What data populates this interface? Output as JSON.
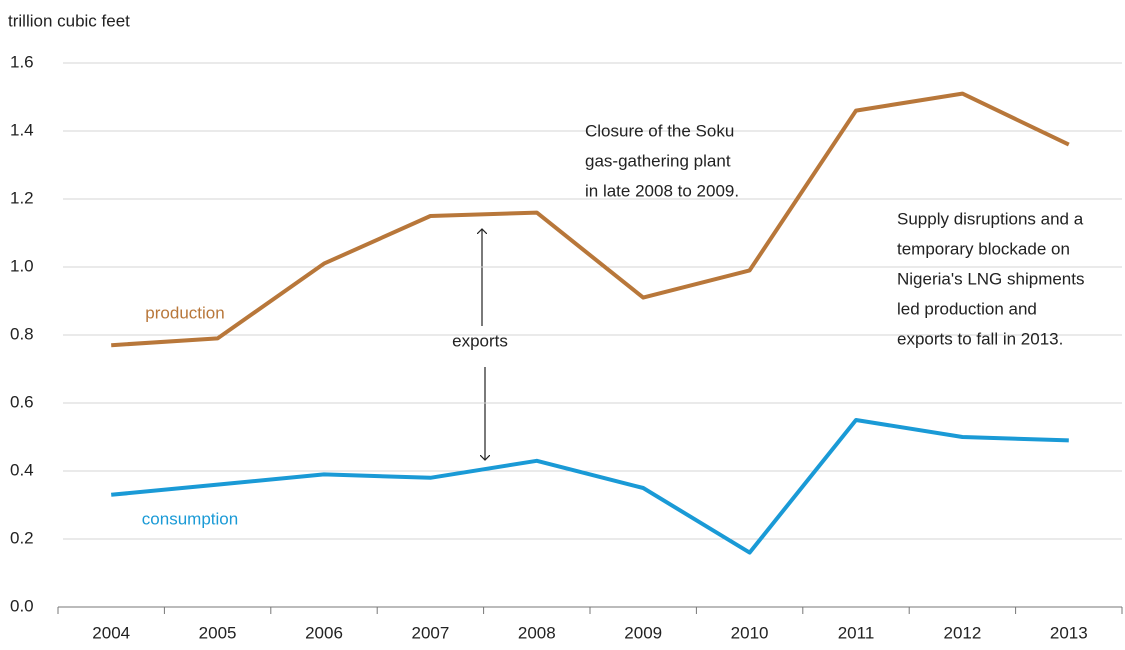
{
  "chart_data": {
    "type": "line",
    "y_axis_label": "trillion cubic feet",
    "categories": [
      "2004",
      "2005",
      "2006",
      "2007",
      "2008",
      "2009",
      "2010",
      "2011",
      "2012",
      "2013"
    ],
    "series": [
      {
        "name": "production",
        "color": "#b8773a",
        "values": [
          0.77,
          0.79,
          1.01,
          1.15,
          1.16,
          0.91,
          0.99,
          1.46,
          1.51,
          1.36
        ]
      },
      {
        "name": "consumption",
        "color": "#1a9ad6",
        "values": [
          0.33,
          0.36,
          0.39,
          0.38,
          0.43,
          0.35,
          0.16,
          0.55,
          0.5,
          0.49
        ]
      }
    ],
    "ylim": [
      0,
      1.6
    ],
    "yticks": [
      {
        "value": 0,
        "label": "0.0"
      },
      0.2,
      0.4,
      0.6,
      0.8,
      {
        "value": 1,
        "label": "1.0"
      },
      1.2,
      1.4,
      1.6
    ],
    "grid": true,
    "annotations": [
      {
        "lines": [
          "exports"
        ]
      },
      {
        "lines": [
          "Closure of the Soku",
          "gas-gathering plant",
          "in late 2008 to 2009."
        ]
      },
      {
        "lines": [
          "Supply disruptions and a",
          "temporary blockade on",
          "Nigeria's LNG shipments",
          "led production and",
          "exports to fall in 2013."
        ]
      }
    ]
  }
}
